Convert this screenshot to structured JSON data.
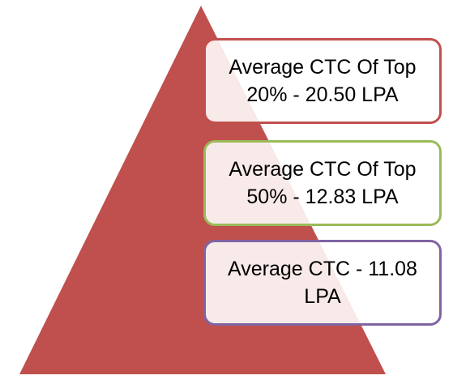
{
  "pyramid": {
    "fill_color": "#c0504d"
  },
  "levels": [
    {
      "label": "Average CTC Of Top 20% - 20.50 LPA",
      "border_color": "#c0504d"
    },
    {
      "label": "Average CTC Of Top 50% - 12.83 LPA",
      "border_color": "#9bbb59"
    },
    {
      "label": "Average CTC - 11.08 LPA",
      "border_color": "#8064a2"
    }
  ]
}
